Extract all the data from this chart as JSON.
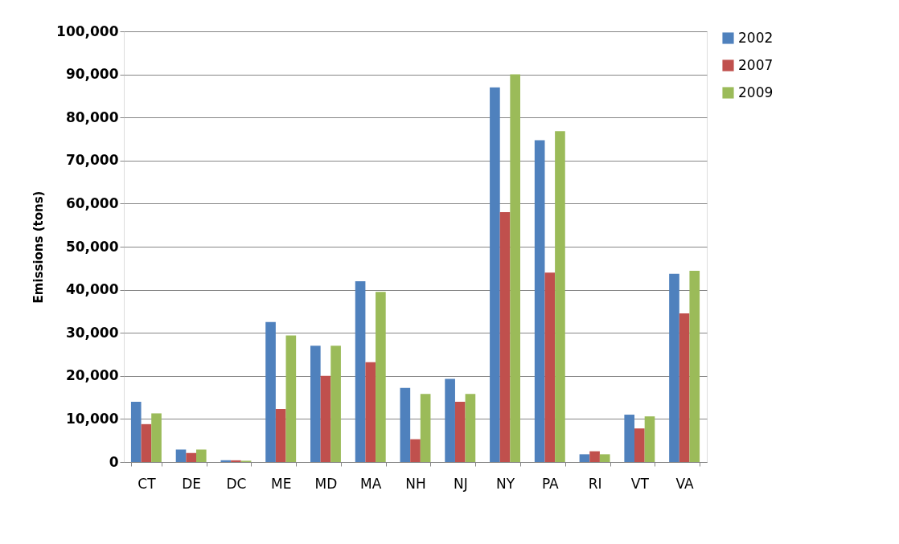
{
  "chart_data": {
    "type": "bar",
    "ylabel": "Emissions (tons)",
    "categories": [
      "CT",
      "DE",
      "DC",
      "ME",
      "MD",
      "MA",
      "NH",
      "NJ",
      "NY",
      "PA",
      "RI",
      "VT",
      "VA"
    ],
    "series": [
      {
        "name": "2002",
        "color": "#4f81bd",
        "values": [
          14000,
          2900,
          400,
          32500,
          27000,
          42000,
          17200,
          19300,
          87000,
          74700,
          1800,
          11000,
          43700
        ]
      },
      {
        "name": "2007",
        "color": "#c0504d",
        "values": [
          8800,
          2100,
          400,
          12300,
          20000,
          23200,
          5300,
          14000,
          58000,
          44000,
          2500,
          7800,
          34500
        ]
      },
      {
        "name": "2009",
        "color": "#9bbb59",
        "values": [
          11300,
          2900,
          300,
          29400,
          27000,
          39500,
          15800,
          15800,
          90000,
          76800,
          1800,
          10600,
          44400
        ]
      }
    ],
    "ylim": [
      0,
      100000
    ],
    "yticks": [
      {
        "value": 0,
        "label": "0"
      },
      {
        "value": 10000,
        "label": "10,000"
      },
      {
        "value": 20000,
        "label": "20,000"
      },
      {
        "value": 30000,
        "label": "30,000"
      },
      {
        "value": 40000,
        "label": "40,000"
      },
      {
        "value": 50000,
        "label": "50,000"
      },
      {
        "value": 60000,
        "label": "60,000"
      },
      {
        "value": 70000,
        "label": "70,000"
      },
      {
        "value": 80000,
        "label": "80,000"
      },
      {
        "value": 90000,
        "label": "90,000"
      },
      {
        "value": 100000,
        "label": "100,000"
      }
    ],
    "grid": "y",
    "legend": "right"
  }
}
